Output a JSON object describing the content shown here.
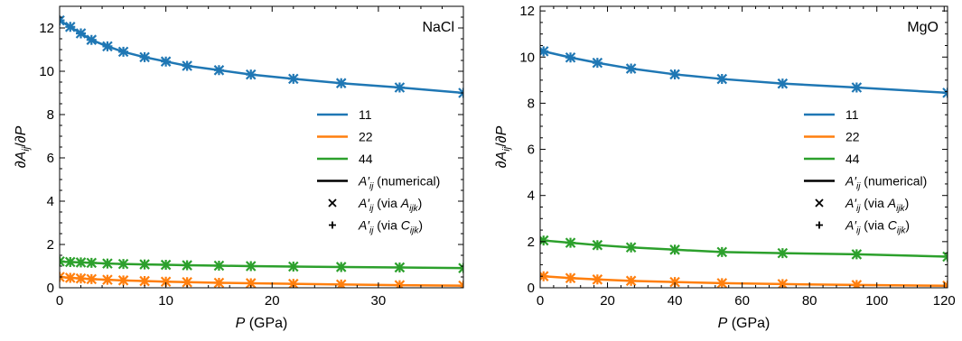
{
  "colors": {
    "11": "#1f77b4",
    "22": "#ff7f0e",
    "44": "#2ca02c",
    "black": "#000000"
  },
  "chart_data": [
    {
      "type": "line",
      "title": "NaCl",
      "xlabel": "P (GPa)",
      "ylabel": "∂A_ij/∂P",
      "xlim": [
        0,
        38
      ],
      "ylim": [
        0,
        13
      ],
      "xticks": [
        0,
        10,
        20,
        30
      ],
      "yticks": [
        0,
        2,
        4,
        6,
        8,
        10,
        12
      ],
      "legend_position": "center-right",
      "series": [
        {
          "name": "11",
          "color_key": "11",
          "x": [
            0,
            0.5,
            1,
            2,
            3,
            4.5,
            6,
            8,
            10,
            12,
            15,
            18,
            22,
            26.5,
            32,
            38
          ],
          "y": [
            12.35,
            12.2,
            12.05,
            11.75,
            11.45,
            11.15,
            10.9,
            10.65,
            10.45,
            10.25,
            10.05,
            9.85,
            9.65,
            9.45,
            9.25,
            9.0
          ]
        },
        {
          "name": "22",
          "color_key": "22",
          "x": [
            0,
            0.5,
            1,
            2,
            3,
            4.5,
            6,
            8,
            10,
            12,
            15,
            18,
            22,
            26.5,
            32,
            38
          ],
          "y": [
            0.5,
            0.48,
            0.46,
            0.43,
            0.4,
            0.37,
            0.34,
            0.31,
            0.28,
            0.26,
            0.23,
            0.21,
            0.18,
            0.15,
            0.12,
            0.1
          ]
        },
        {
          "name": "44",
          "color_key": "44",
          "x": [
            0,
            0.5,
            1,
            2,
            3,
            4.5,
            6,
            8,
            10,
            12,
            15,
            18,
            22,
            26.5,
            32,
            38
          ],
          "y": [
            1.22,
            1.2,
            1.19,
            1.17,
            1.15,
            1.12,
            1.1,
            1.08,
            1.06,
            1.04,
            1.02,
            1.0,
            0.98,
            0.96,
            0.94,
            0.91
          ]
        }
      ],
      "markers_x": {
        "11": [
          0,
          1,
          2,
          3,
          4.5,
          6,
          8,
          10,
          12,
          15,
          18,
          22,
          26.5,
          32,
          38
        ],
        "22": [
          0,
          1,
          2,
          3,
          4.5,
          6,
          8,
          10,
          12,
          15,
          18,
          22,
          26.5,
          32,
          38
        ],
        "44": [
          0,
          1,
          2,
          3,
          4.5,
          6,
          8,
          10,
          12,
          15,
          18,
          22,
          26.5,
          32,
          38
        ]
      },
      "legend": [
        {
          "label": "11",
          "kind": "line",
          "color_key": "11"
        },
        {
          "label": "22",
          "kind": "line",
          "color_key": "22"
        },
        {
          "label": "44",
          "kind": "line",
          "color_key": "44"
        },
        {
          "label": "A′ij (numerical)",
          "kind": "line",
          "color_key": "black"
        },
        {
          "label": "A′ij (via Aijk)",
          "kind": "x",
          "color_key": "black"
        },
        {
          "label": "A′ij (via Cijk)",
          "kind": "plus",
          "color_key": "black"
        }
      ]
    },
    {
      "type": "line",
      "title": "MgO",
      "xlabel": "P (GPa)",
      "ylabel": "∂A_ij/∂P",
      "xlim": [
        0,
        121
      ],
      "ylim": [
        0,
        12.2
      ],
      "xticks": [
        0,
        20,
        40,
        60,
        80,
        100,
        120
      ],
      "yticks": [
        0,
        2,
        4,
        6,
        8,
        10,
        12
      ],
      "legend_position": "center-right",
      "series": [
        {
          "name": "11",
          "color_key": "11",
          "x": [
            0,
            1,
            9,
            17,
            27,
            40,
            54,
            72,
            94,
            121
          ],
          "y": [
            10.3,
            10.25,
            9.98,
            9.75,
            9.5,
            9.25,
            9.05,
            8.85,
            8.68,
            8.45
          ]
        },
        {
          "name": "22",
          "color_key": "22",
          "x": [
            0,
            1,
            9,
            17,
            27,
            40,
            54,
            72,
            94,
            121
          ],
          "y": [
            0.55,
            0.5,
            0.42,
            0.36,
            0.3,
            0.25,
            0.2,
            0.16,
            0.12,
            0.09
          ]
        },
        {
          "name": "44",
          "color_key": "44",
          "x": [
            0,
            1,
            9,
            17,
            27,
            40,
            54,
            72,
            94,
            121
          ],
          "y": [
            2.1,
            2.05,
            1.95,
            1.85,
            1.75,
            1.65,
            1.55,
            1.5,
            1.45,
            1.35
          ]
        }
      ],
      "markers_x": {
        "11": [
          1,
          9,
          17,
          27,
          40,
          54,
          72,
          94,
          121
        ],
        "22": [
          1,
          9,
          17,
          27,
          40,
          54,
          72,
          94,
          121
        ],
        "44": [
          1,
          9,
          17,
          27,
          40,
          54,
          72,
          94,
          121
        ]
      },
      "legend": [
        {
          "label": "11",
          "kind": "line",
          "color_key": "11"
        },
        {
          "label": "22",
          "kind": "line",
          "color_key": "22"
        },
        {
          "label": "44",
          "kind": "line",
          "color_key": "44"
        },
        {
          "label": "A′ij (numerical)",
          "kind": "line",
          "color_key": "black"
        },
        {
          "label": "A′ij (via Aijk)",
          "kind": "x",
          "color_key": "black"
        },
        {
          "label": "A′ij (via Cijk)",
          "kind": "plus",
          "color_key": "black"
        }
      ]
    }
  ]
}
